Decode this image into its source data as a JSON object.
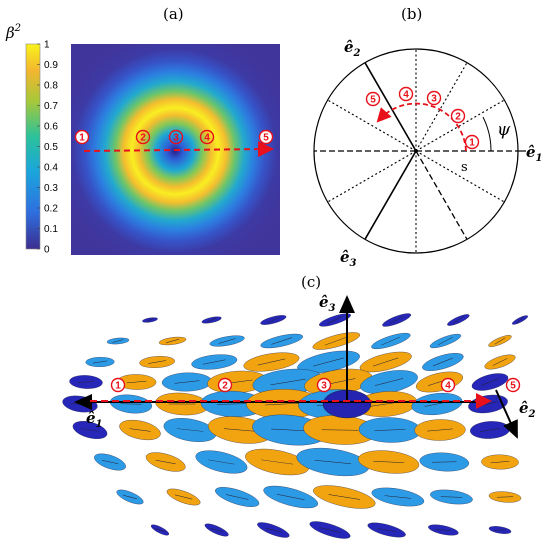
{
  "panels": {
    "a": {
      "label": "(a)"
    },
    "b": {
      "label": "(b)"
    },
    "c": {
      "label": "(c)"
    }
  },
  "colorbar": {
    "title_base": "β",
    "title_sup": "2",
    "ticks": [
      "1",
      "0.9",
      "0.8",
      "0.7",
      "0.6",
      "0.5",
      "0.4",
      "0.3",
      "0.2",
      "0.1",
      "0"
    ],
    "colors": [
      "#3b2e8e",
      "#2f6fe0",
      "#1aa6dc",
      "#2cc29a",
      "#a6c83a",
      "#f3b630",
      "#f9f21a"
    ]
  },
  "markers": [
    "1",
    "2",
    "3",
    "4",
    "5"
  ],
  "polar": {
    "s_label": "s",
    "psi_label": "ψ",
    "e1": "ê",
    "e1_sub": "1",
    "e2": "ê",
    "e2_sub": "2",
    "e3": "ê",
    "e3_sub": "3"
  },
  "field3d": {
    "e1": "ê",
    "e1_sub": "1",
    "e2": "ê",
    "e2_sub": "2",
    "e3": "ê",
    "e3_sub": "3"
  },
  "colors": {
    "marker_red": "#e8101a",
    "navy": "#2626b8",
    "sky": "#2d9ae6",
    "orange": "#f2a410"
  }
}
